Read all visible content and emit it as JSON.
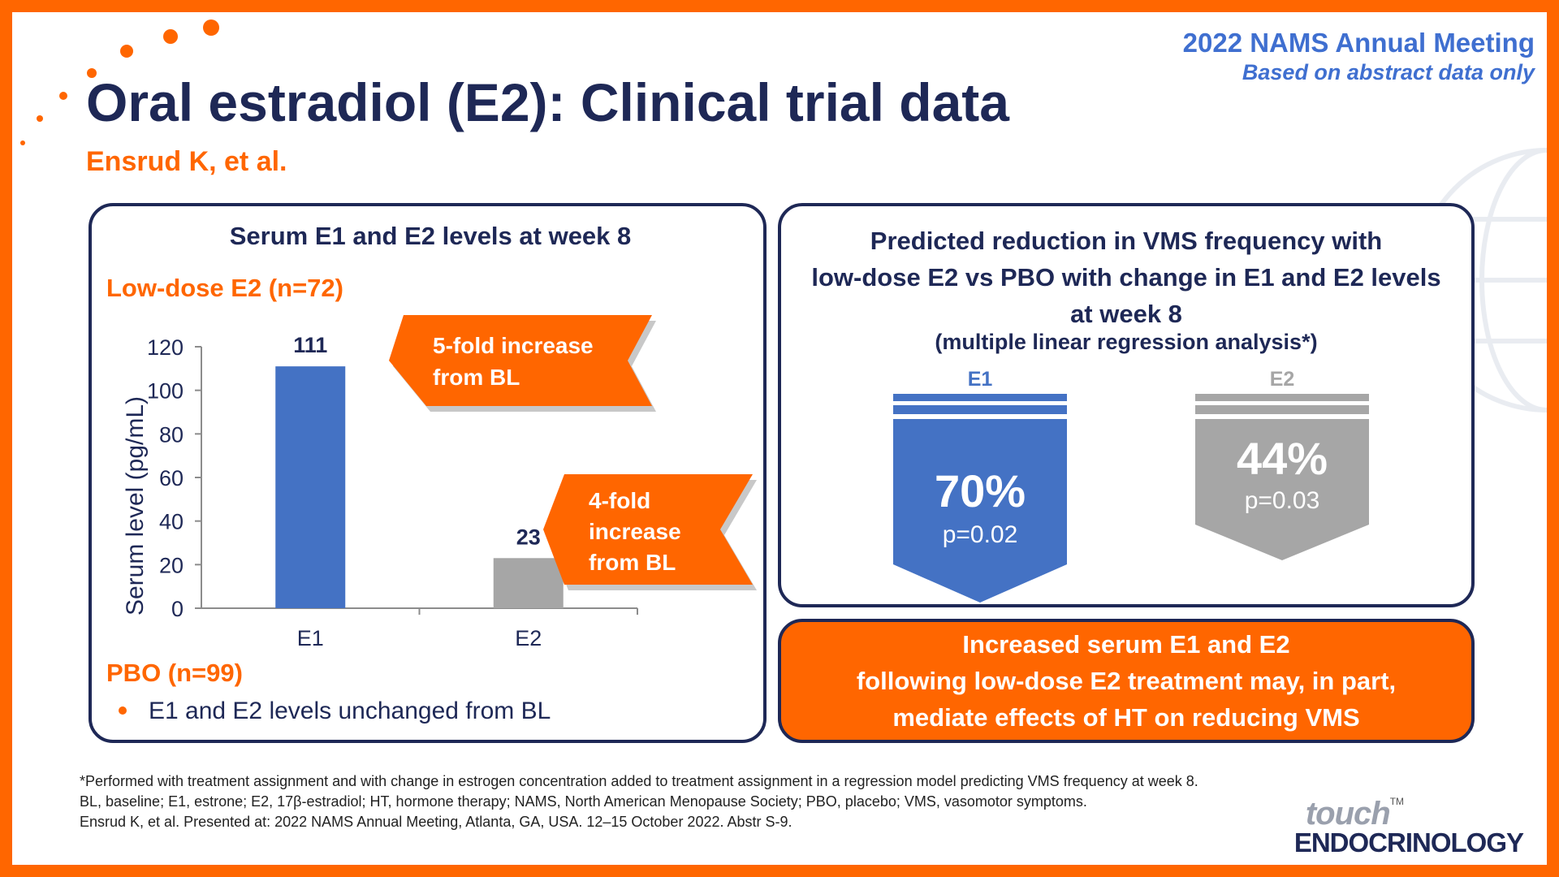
{
  "header": {
    "meeting": "2022 NAMS Annual Meeting",
    "meeting_note": "Based on abstract data only",
    "title": "Oral estradiol (E2): Clinical trial data",
    "authors": "Ensrud K, et al."
  },
  "left_panel": {
    "heading": "Serum E1 and E2 levels at week 8",
    "group_label": "Low-dose E2 (n=72)",
    "callouts": [
      {
        "lines": [
          "5-fold increase",
          "from BL"
        ]
      },
      {
        "lines": [
          "4-fold",
          "increase",
          "from BL"
        ]
      }
    ],
    "pbo_label": "PBO (n=99)",
    "pbo_bullet": "E1 and E2 levels unchanged from BL"
  },
  "chart_data": {
    "type": "bar",
    "categories": [
      "E1",
      "E2"
    ],
    "values": [
      111,
      23
    ],
    "data_labels": [
      "111",
      "23"
    ],
    "colors": [
      "#4472c4",
      "#a6a6a6"
    ],
    "ylabel": "Serum level (pg/mL)",
    "xlabel": "",
    "ylim": [
      0,
      120
    ],
    "yticks": [
      0,
      20,
      40,
      60,
      80,
      100,
      120
    ],
    "grid": false,
    "legend": "none"
  },
  "right_panel": {
    "title_lines": [
      "Predicted reduction in VMS frequency with",
      "low-dose E2 vs PBO with change in E1 and E2 levels",
      "at week 8"
    ],
    "subtitle": "(multiple linear regression analysis*)",
    "arrows": [
      {
        "label": "E1",
        "percent": "70%",
        "pvalue": "p=0.02",
        "value": 70,
        "color": "#4472c4"
      },
      {
        "label": "E2",
        "percent": "44%",
        "pvalue": "p=0.03",
        "value": 44,
        "color": "#a6a6a6"
      }
    ]
  },
  "conclusion": {
    "lines": [
      "Increased serum E1 and E2",
      "following low-dose E2 treatment may, in part,",
      "mediate effects of HT on reducing VMS"
    ]
  },
  "footnotes": [
    "*Performed with treatment assignment and with change in estrogen concentration added to treatment assignment in a regression model predicting VMS frequency at week 8.",
    "BL, baseline; E1, estrone; E2, 17β-estradiol; HT, hormone therapy; NAMS, North American Menopause Society; PBO, placebo; VMS, vasomotor symptoms.",
    "Ensrud K, et al. Presented at: 2022 NAMS Annual Meeting, Atlanta, GA, USA. 12–15 October 2022. Abstr S-9."
  ],
  "logo": {
    "brand_top": "touch",
    "trademark": "TM",
    "brand_bottom": "ENDOCRINOLOGY"
  },
  "colors": {
    "orange": "#ff6600",
    "navy": "#1e2856",
    "blue": "#4472c4",
    "gray": "#a6a6a6",
    "header_blue": "#3f6fd0"
  }
}
